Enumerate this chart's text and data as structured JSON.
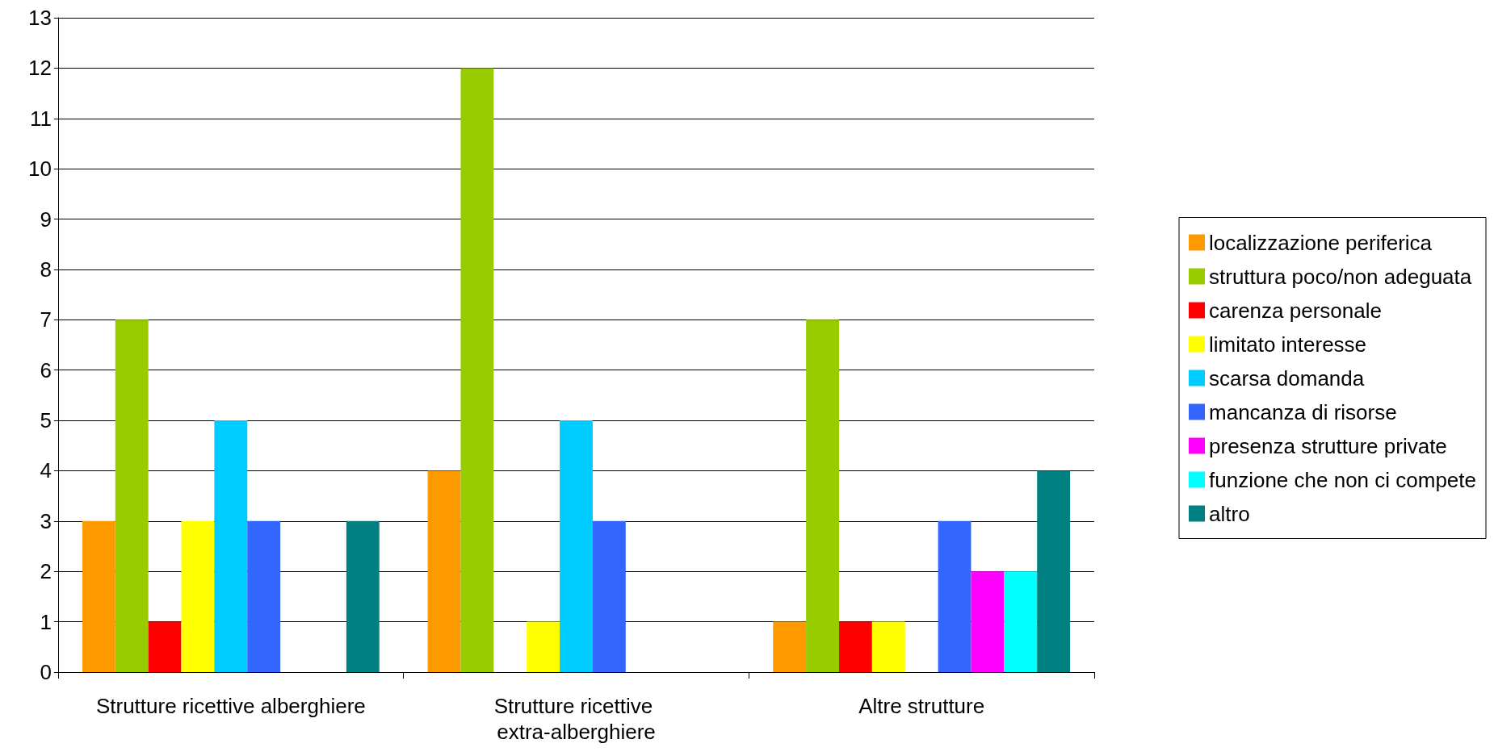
{
  "chart_data": {
    "type": "bar",
    "categories": [
      "Strutture ricettive alberghiere",
      "Strutture ricettive extra-alberghiere",
      "Altre strutture"
    ],
    "series": [
      {
        "name": "localizzazione periferica",
        "color": "#ff9900",
        "values": [
          3,
          4,
          1
        ]
      },
      {
        "name": "struttura poco/non adeguata",
        "color": "#99cc00",
        "values": [
          7,
          12,
          7
        ]
      },
      {
        "name": "carenza personale",
        "color": "#ff0000",
        "values": [
          1,
          0,
          1
        ]
      },
      {
        "name": "limitato interesse",
        "color": "#ffff00",
        "values": [
          3,
          1,
          1
        ]
      },
      {
        "name": "scarsa domanda",
        "color": "#00ccff",
        "values": [
          5,
          5,
          0
        ]
      },
      {
        "name": "mancanza di risorse",
        "color": "#3366ff",
        "values": [
          3,
          3,
          3
        ]
      },
      {
        "name": "presenza strutture private",
        "color": "#ff00ff",
        "values": [
          0,
          0,
          2
        ]
      },
      {
        "name": "funzione che non ci compete",
        "color": "#00ffff",
        "values": [
          0,
          0,
          2
        ]
      },
      {
        "name": "altro",
        "color": "#008080",
        "values": [
          3,
          0,
          4
        ]
      }
    ],
    "ylim": [
      0,
      13
    ],
    "yticks": [
      0,
      1,
      2,
      3,
      4,
      5,
      6,
      7,
      8,
      9,
      10,
      11,
      12,
      13
    ],
    "grid": "y",
    "legend": "right"
  }
}
